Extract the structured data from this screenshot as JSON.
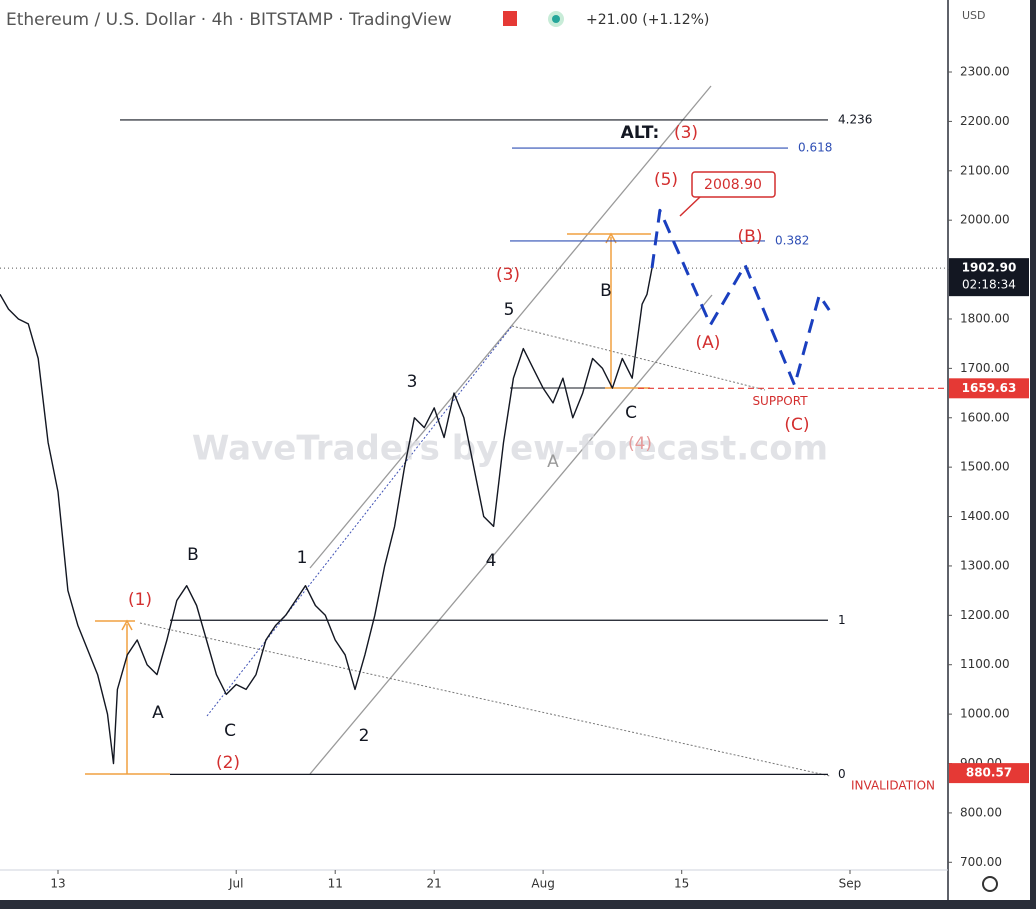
{
  "chart_data": {
    "type": "line",
    "title": "Ethereum / U.S. Dollar · 4h · BITSTAMP · TradingView",
    "change": "+21.00 (+1.12%)",
    "currency": "USD",
    "watermark": "WaveTraders by ew-forecast.com",
    "xlim": [
      6.14,
      101.9
    ],
    "ylim": [
      684.4,
      2445.8
    ],
    "xticks": [
      {
        "value": 12,
        "label": "13"
      },
      {
        "value": 30,
        "label": "Jul"
      },
      {
        "value": 40,
        "label": "11"
      },
      {
        "value": 50,
        "label": "21"
      },
      {
        "value": 61,
        "label": "Aug"
      },
      {
        "value": 75,
        "label": "15"
      },
      {
        "value": 92,
        "label": "Sep"
      }
    ],
    "yticks": [
      {
        "value": 700,
        "label": "700.00"
      },
      {
        "value": 800,
        "label": "800.00"
      },
      {
        "value": 900,
        "label": "900.00"
      },
      {
        "value": 1000,
        "label": "1000.00"
      },
      {
        "value": 1100,
        "label": "1100.00"
      },
      {
        "value": 1200,
        "label": "1200.00"
      },
      {
        "value": 1300,
        "label": "1300.00"
      },
      {
        "value": 1400,
        "label": "1400.00"
      },
      {
        "value": 1500,
        "label": "1500.00"
      },
      {
        "value": 1600,
        "label": "1600.00"
      },
      {
        "value": 1700,
        "label": "1700.00"
      },
      {
        "value": 1800,
        "label": "1800.00"
      },
      {
        "value": 1900,
        "label": "1900.00"
      },
      {
        "value": 2000,
        "label": "2000.00"
      },
      {
        "value": 2100,
        "label": "2100.00"
      },
      {
        "value": 2200,
        "label": "2200.00"
      },
      {
        "value": 2300,
        "label": "2300.00"
      }
    ],
    "series": [
      {
        "color": "#131722",
        "dashed": false,
        "x": [
          6.14,
          7,
          8,
          9,
          10,
          11,
          12,
          13,
          14,
          15,
          16,
          17,
          17.6,
          18,
          19,
          20,
          21,
          22,
          23,
          24,
          25,
          26,
          27,
          28,
          29,
          30,
          31,
          32,
          33,
          34,
          35,
          36,
          37,
          38,
          39,
          40,
          41,
          42,
          43,
          44,
          45,
          46,
          47,
          48,
          49,
          50,
          51,
          52,
          53,
          54,
          55,
          56,
          57,
          58,
          59,
          60,
          61,
          62,
          63,
          64,
          65,
          66,
          67,
          68,
          69,
          70,
          71,
          71.5,
          72
        ],
        "values": [
          1850,
          1820,
          1800,
          1790,
          1720,
          1550,
          1450,
          1250,
          1180,
          1130,
          1080,
          1000,
          900,
          1050,
          1120,
          1150,
          1100,
          1080,
          1150,
          1230,
          1260,
          1220,
          1150,
          1080,
          1040,
          1060,
          1050,
          1080,
          1150,
          1180,
          1200,
          1230,
          1260,
          1220,
          1200,
          1150,
          1120,
          1050,
          1120,
          1200,
          1300,
          1380,
          1500,
          1600,
          1580,
          1620,
          1560,
          1650,
          1600,
          1500,
          1400,
          1380,
          1550,
          1680,
          1740,
          1700,
          1660,
          1630,
          1680,
          1600,
          1650,
          1720,
          1700,
          1660,
          1720,
          1680,
          1830,
          1850,
          1903
        ]
      },
      {
        "color": "#1a3fbf",
        "dashed": true,
        "x": [
          72,
          72.8,
          77.9,
          81.4,
          86.4,
          88.9,
          89.9
        ],
        "values": [
          1903,
          2020,
          1788,
          1909,
          1666,
          1848,
          1818
        ]
      }
    ],
    "levels": [
      {
        "value": 2203,
        "label": "4.236",
        "color": "#131722"
      },
      {
        "value": 2146,
        "label": "0.618",
        "color": "#2f4fb5"
      },
      {
        "value": 1958,
        "label": "0.382",
        "color": "#2f4fb5"
      },
      {
        "value": 1190,
        "label": "1",
        "color": "#131722"
      },
      {
        "value": 878,
        "label": "0",
        "color": "#131722"
      }
    ],
    "last_price": {
      "value": 1902.9,
      "label": "1902.90"
    },
    "countdown": "02:18:34",
    "support": {
      "value": 1659.63,
      "label": "1659.63",
      "text": "SUPPORT"
    },
    "invalidation": {
      "value": 880.57,
      "label": "880.57",
      "text": "INVALIDATION"
    },
    "target": {
      "value": 2008.9,
      "label": "2008.90"
    },
    "annotations": [
      {
        "text": "(1)",
        "color": "#d32f2f"
      },
      {
        "text": "B",
        "color": "#131722"
      },
      {
        "text": "A",
        "color": "#131722"
      },
      {
        "text": "C",
        "color": "#131722"
      },
      {
        "text": "(2)",
        "color": "#d32f2f"
      },
      {
        "text": "1",
        "color": "#131722"
      },
      {
        "text": "2",
        "color": "#131722"
      },
      {
        "text": "3",
        "color": "#131722"
      },
      {
        "text": "4",
        "color": "#131722"
      },
      {
        "text": "5",
        "color": "#131722"
      },
      {
        "text": "(3)",
        "color": "#d32f2f"
      },
      {
        "text": "A",
        "color": "#9a9a9a"
      },
      {
        "text": "B",
        "color": "#131722"
      },
      {
        "text": "C",
        "color": "#131722"
      },
      {
        "text": "(4)",
        "color": "#e59a9a"
      },
      {
        "text": "(5)",
        "color": "#d32f2f"
      },
      {
        "text": "(A)",
        "color": "#d32f2f"
      },
      {
        "text": "(B)",
        "color": "#d32f2f"
      },
      {
        "text": "(C)",
        "color": "#d32f2f"
      },
      {
        "text": "ALT:",
        "color": "#131722"
      },
      {
        "text": "(3)",
        "color": "#d32f2f"
      }
    ]
  }
}
